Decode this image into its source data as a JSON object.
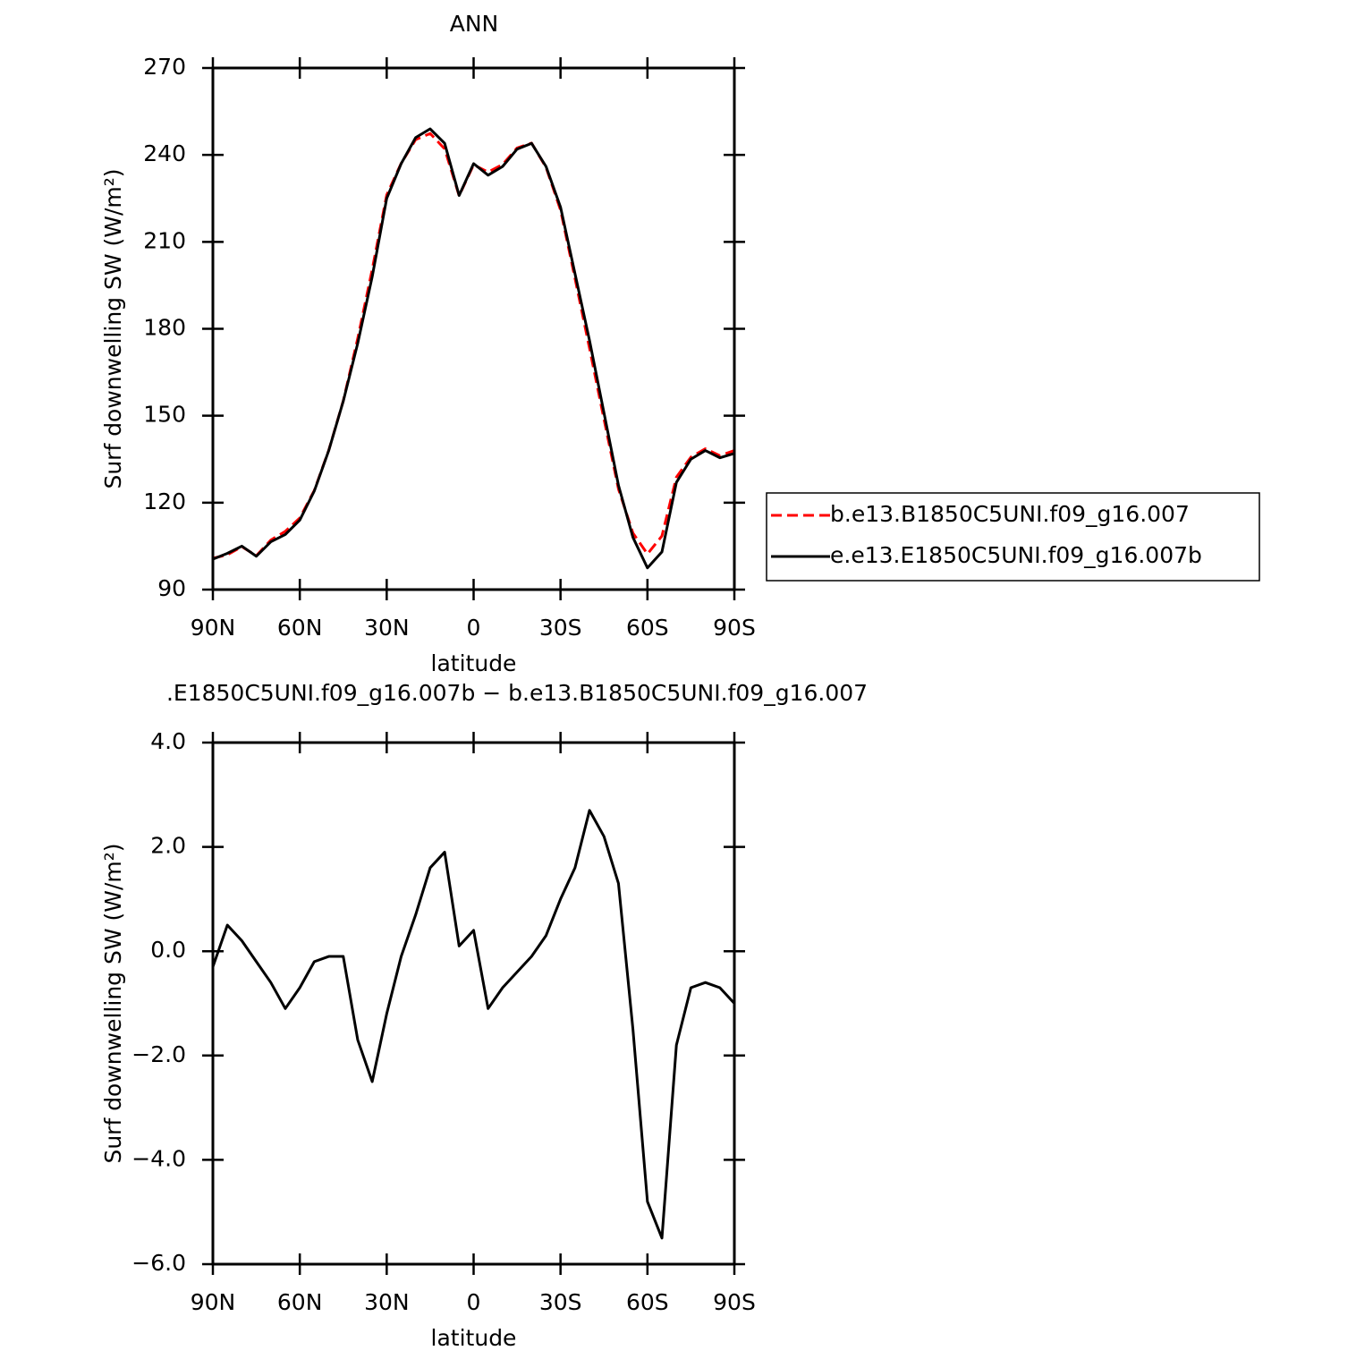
{
  "chart_data": [
    {
      "type": "line",
      "title": "ANN",
      "xlabel": "latitude",
      "ylabel": "Surf downwelling SW (W/m²)",
      "x": [
        90,
        85,
        80,
        75,
        70,
        65,
        60,
        55,
        50,
        45,
        40,
        35,
        30,
        25,
        20,
        15,
        10,
        5,
        0,
        -5,
        -10,
        -15,
        -20,
        -25,
        -30,
        -35,
        -40,
        -45,
        -50,
        -55,
        -60,
        -65,
        -70,
        -75,
        -80,
        -85,
        -90
      ],
      "xlim": [
        90,
        -90
      ],
      "xticks": [
        {
          "value": 90,
          "label": "90N"
        },
        {
          "value": 60,
          "label": "60N"
        },
        {
          "value": 30,
          "label": "30N"
        },
        0,
        {
          "value": -30,
          "label": "30S"
        },
        {
          "value": -60,
          "label": "60S"
        },
        {
          "value": -90,
          "label": "90S"
        }
      ],
      "ylim": [
        90,
        270
      ],
      "yticks": [
        90,
        120,
        150,
        180,
        210,
        240,
        270
      ],
      "legend": "right",
      "series": [
        {
          "name": "b.e13.B1850C5UNI.f09_g16.007",
          "color": "#ff0000",
          "dash": true,
          "values": [
            100.8,
            102,
            104.8,
            101.7,
            107.1,
            110.1,
            114.7,
            124.2,
            138.1,
            155.1,
            176.7,
            200.5,
            226.2,
            237.1,
            245.3,
            247.4,
            242.1,
            225.9,
            236.6,
            234.1,
            236.7,
            242.4,
            244.1,
            235.7,
            221,
            197.4,
            173.3,
            148.8,
            124.7,
            109.5,
            102.3,
            108.5,
            128.8,
            135.7,
            138.6,
            136.2,
            138
          ]
        },
        {
          "name": "e.e13.E1850C5UNI.f09_g16.007b",
          "color": "#000000",
          "dash": false,
          "values": [
            100.5,
            102.5,
            105,
            101.5,
            106.5,
            109,
            114,
            124,
            138,
            155,
            175,
            198,
            225,
            237,
            246,
            249,
            244,
            226,
            237,
            233,
            236,
            242,
            244,
            236,
            222,
            199,
            176,
            151,
            126,
            108,
            97.5,
            103,
            127,
            135,
            138,
            135.5,
            137
          ]
        }
      ]
    },
    {
      "type": "line",
      "title": ".E1850C5UNI.f09_g16.007b − b.e13.B1850C5UNI.f09_g16.007",
      "xlabel": "latitude",
      "ylabel": "Surf downwelling SW (W/m²)",
      "x": [
        90,
        85,
        80,
        75,
        70,
        65,
        60,
        55,
        50,
        45,
        40,
        35,
        30,
        25,
        20,
        15,
        10,
        5,
        0,
        -5,
        -10,
        -15,
        -20,
        -25,
        -30,
        -35,
        -40,
        -45,
        -50,
        -55,
        -60,
        -65,
        -70,
        -75,
        -80,
        -85,
        -90
      ],
      "xlim": [
        90,
        -90
      ],
      "xticks": [
        {
          "value": 90,
          "label": "90N"
        },
        {
          "value": 60,
          "label": "60N"
        },
        {
          "value": 30,
          "label": "30N"
        },
        0,
        {
          "value": -30,
          "label": "30S"
        },
        {
          "value": -60,
          "label": "60S"
        },
        {
          "value": -90,
          "label": "90S"
        }
      ],
      "ylim": [
        -6,
        4
      ],
      "yticks": [
        {
          "value": -6,
          "label": "−6.0"
        },
        {
          "value": -4,
          "label": "−4.0"
        },
        {
          "value": -2,
          "label": "−2.0"
        },
        {
          "value": 0,
          "label": "0.0"
        },
        {
          "value": 2,
          "label": "2.0"
        },
        {
          "value": 4,
          "label": "4.0"
        }
      ],
      "series": [
        {
          "color": "#000000",
          "dash": false,
          "values": [
            -0.3,
            0.5,
            0.2,
            -0.2,
            -0.6,
            -1.1,
            -0.7,
            -0.2,
            -0.1,
            -0.1,
            -1.7,
            -2.5,
            -1.2,
            -0.1,
            0.7,
            1.6,
            1.9,
            0.1,
            0.4,
            -1.1,
            -0.7,
            -0.4,
            -0.1,
            0.3,
            1.0,
            1.6,
            2.7,
            2.2,
            1.3,
            -1.5,
            -4.8,
            -5.5,
            -1.8,
            -0.7,
            -0.6,
            -0.7,
            -1.0
          ]
        }
      ]
    }
  ]
}
